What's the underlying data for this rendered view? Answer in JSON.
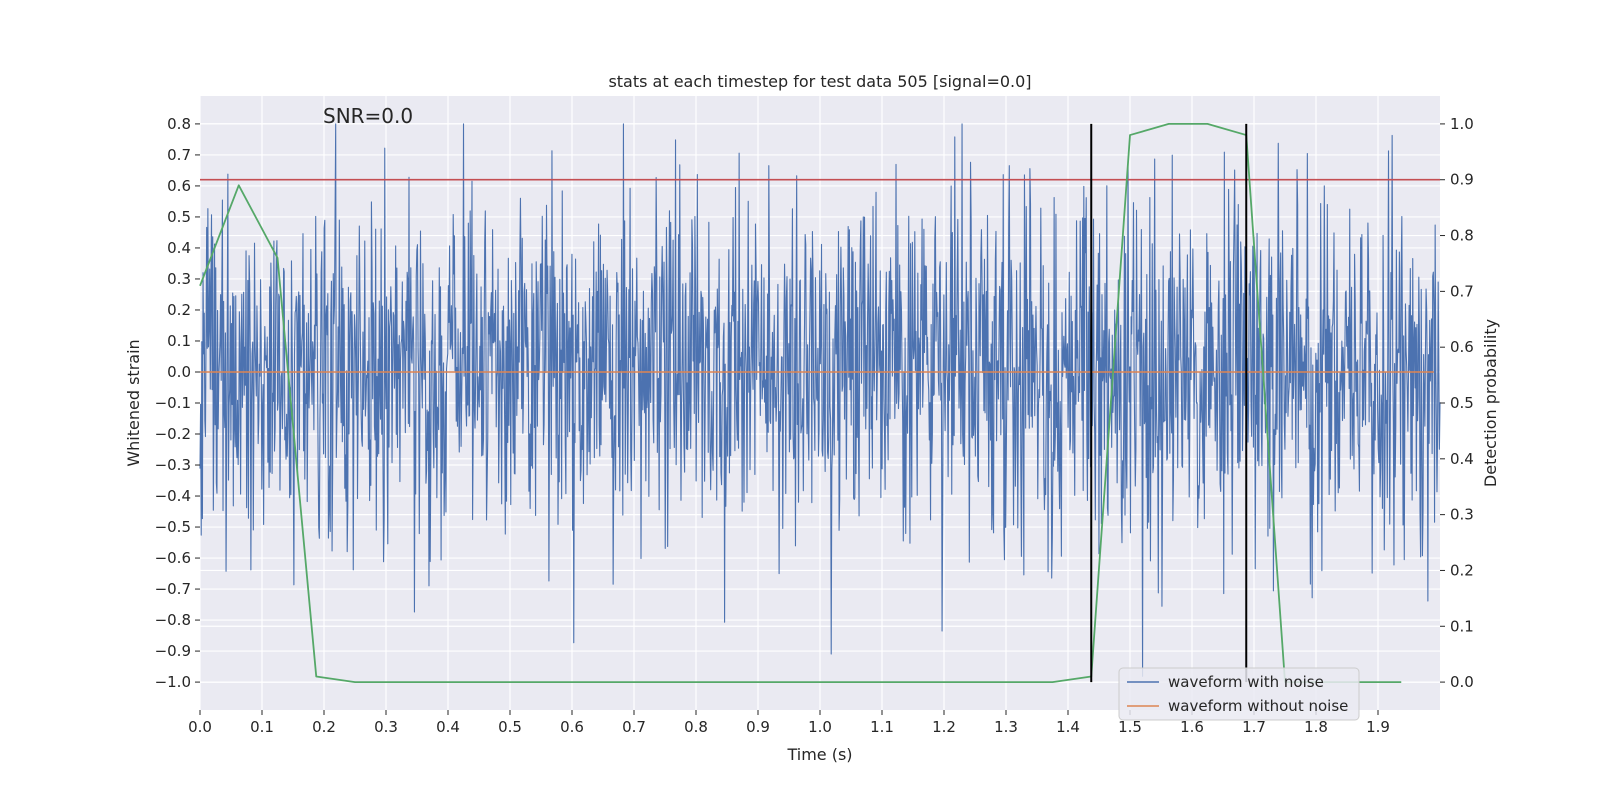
{
  "chart_data": {
    "type": "line",
    "title": "stats at each timestep for test data 505 [signal=0.0]",
    "xlabel": "Time (s)",
    "ylabel": "Whitened strain",
    "y2label": "Detection probability",
    "annotation": "SNR=0.0",
    "xlim": [
      0.0,
      2.0
    ],
    "ylim": [
      -1.09,
      0.89
    ],
    "y2lim": [
      -0.05,
      1.05
    ],
    "x_ticks": [
      0.0,
      0.1,
      0.2,
      0.3,
      0.4,
      0.5,
      0.6,
      0.7,
      0.8,
      0.9,
      1.0,
      1.1,
      1.2,
      1.3,
      1.4,
      1.5,
      1.6,
      1.7,
      1.8,
      1.9
    ],
    "x_tick_labels": [
      "0.0",
      "0.1",
      "0.2",
      "0.3",
      "0.4",
      "0.5",
      "0.6",
      "0.7",
      "0.8",
      "0.9",
      "1.0",
      "1.1",
      "1.2",
      "1.3",
      "1.4",
      "1.5",
      "1.6",
      "1.7",
      "1.8",
      "1.9"
    ],
    "y_ticks": [
      0.8,
      0.7,
      0.6,
      0.5,
      0.4,
      0.3,
      0.2,
      0.1,
      0.0,
      -0.1,
      -0.2,
      -0.3,
      -0.4,
      -0.5,
      -0.6,
      -0.7,
      -0.8,
      -0.9,
      -1.0
    ],
    "y_tick_labels": [
      "0.8",
      "0.7",
      "0.6",
      "0.5",
      "0.4",
      "0.3",
      "0.2",
      "0.1",
      "0.0",
      "−0.1",
      "−0.2",
      "−0.3",
      "−0.4",
      "−0.5",
      "−0.6",
      "−0.7",
      "−0.8",
      "−0.9",
      "−1.0"
    ],
    "y2_ticks": [
      1.0,
      0.9,
      0.8,
      0.7,
      0.6,
      0.5,
      0.4,
      0.3,
      0.2,
      0.1,
      0.0
    ],
    "y2_tick_labels": [
      "1.0",
      "0.9",
      "0.8",
      "0.7",
      "0.6",
      "0.5",
      "0.4",
      "0.3",
      "0.2",
      "0.1",
      "0.0"
    ],
    "legend_position": "bottom-right",
    "series": [
      {
        "name": "waveform with noise",
        "color": "#4c72b0",
        "axis": "left",
        "kind": "noise",
        "x_range": [
          0.0,
          2.0
        ],
        "n_points": 2048,
        "std": 0.28,
        "min": -1.0,
        "max": 0.8
      },
      {
        "name": "waveform without noise",
        "color": "#dd8452",
        "axis": "left",
        "x": [
          0.0,
          1.99
        ],
        "y": [
          0.0,
          0.0
        ]
      },
      {
        "name": "detection probability",
        "color": "#55a868",
        "axis": "right",
        "x": [
          0.0,
          0.0625,
          0.125,
          0.1875,
          0.25,
          0.3125,
          0.375,
          0.4375,
          0.5,
          0.5625,
          0.625,
          0.6875,
          0.75,
          0.8125,
          0.875,
          0.9375,
          1.0,
          1.0625,
          1.125,
          1.1875,
          1.25,
          1.3125,
          1.375,
          1.4375,
          1.5,
          1.5625,
          1.625,
          1.6875,
          1.75,
          1.8125,
          1.875,
          1.9375
        ],
        "y": [
          0.71,
          0.89,
          0.76,
          0.01,
          0.0,
          0.0,
          0.0,
          0.0,
          0.0,
          0.0,
          0.0,
          0.0,
          0.0,
          0.0,
          0.0,
          0.0,
          0.0,
          0.0,
          0.0,
          0.0,
          0.0,
          0.0,
          0.0,
          0.01,
          0.98,
          1.0,
          1.0,
          0.98,
          0.0,
          0.0,
          0.0,
          0.0
        ]
      }
    ],
    "threshold": {
      "value": 0.9,
      "axis": "right",
      "color": "#c44e52"
    },
    "vlines": [
      {
        "x": 1.4375,
        "color": "#000000"
      },
      {
        "x": 1.6875,
        "color": "#000000"
      }
    ]
  }
}
